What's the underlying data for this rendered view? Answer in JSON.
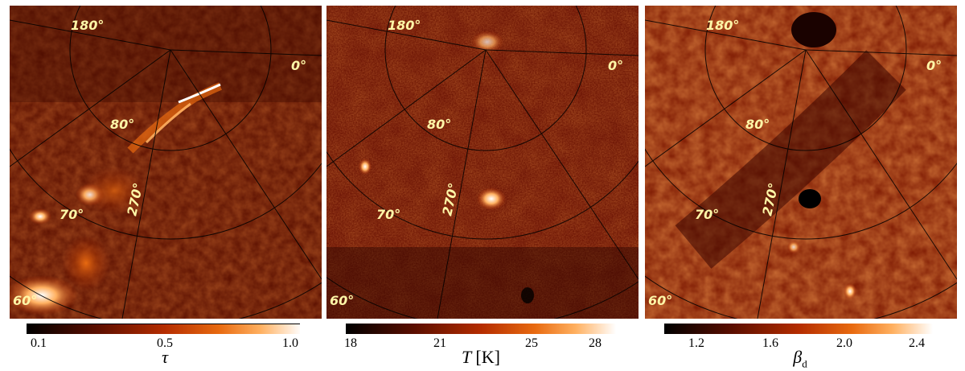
{
  "panels": [
    {
      "id": "tau",
      "quantity": "τ",
      "unit": "",
      "subscript": "",
      "ticks": [
        "0.1",
        "0.5",
        "1.0"
      ],
      "coord_labels": [
        "180°",
        "0°",
        "80°",
        "70°",
        "270°",
        "60°"
      ],
      "palette": [
        "#000000",
        "#5a0e00",
        "#b42c00",
        "#e86a10",
        "#ffb060",
        "#ffffff"
      ]
    },
    {
      "id": "temperature",
      "quantity": "T",
      "unit": "[K]",
      "subscript": "",
      "ticks": [
        "18",
        "21",
        "25",
        "28"
      ],
      "coord_labels": [
        "180°",
        "0°",
        "80°",
        "70°",
        "270°",
        "60°"
      ],
      "palette": [
        "#000000",
        "#5a0e00",
        "#b42c00",
        "#e86a10",
        "#ffb060",
        "#ffffff"
      ]
    },
    {
      "id": "beta",
      "quantity": "β",
      "unit": "",
      "subscript": "d",
      "ticks": [
        "1.2",
        "1.6",
        "2.0",
        "2.4"
      ],
      "coord_labels": [
        "180°",
        "0°",
        "80°",
        "70°",
        "270°",
        "60°"
      ],
      "palette": [
        "#000000",
        "#5a0e00",
        "#b42c00",
        "#e86a10",
        "#ffb060",
        "#ffffff"
      ]
    }
  ]
}
